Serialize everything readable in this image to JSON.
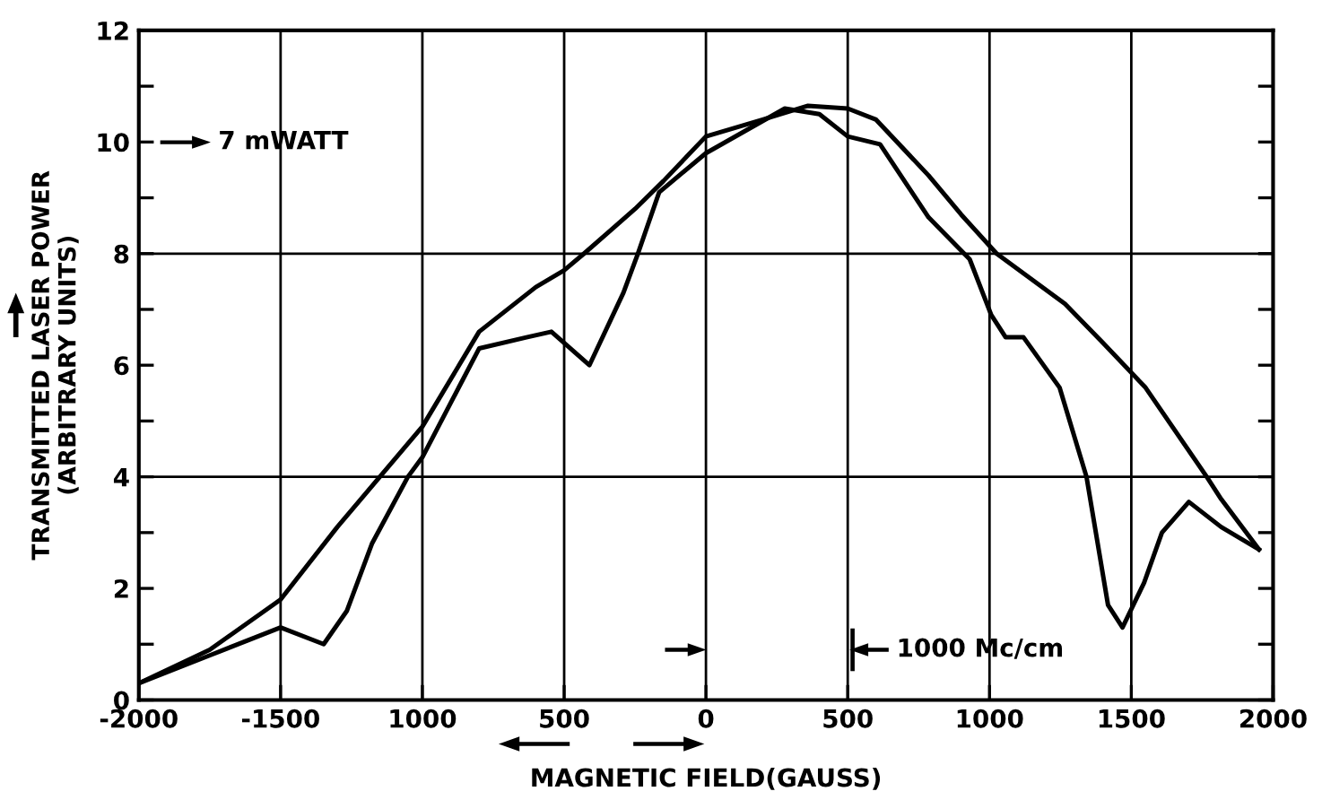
{
  "chart_data": {
    "type": "line",
    "xlabel": "MAGNETIC FIELD(GAUSS)",
    "ylabel": "TRANSMITTED LASER POWER\n(ARBITRARY UNITS)",
    "xlim": [
      -2000,
      2000
    ],
    "ylim": [
      0,
      12
    ],
    "xticks": [
      {
        "value": -2000,
        "label": "-2000"
      },
      {
        "value": -1500,
        "label": "-1500"
      },
      {
        "value": -1000,
        "label": "1000"
      },
      {
        "value": -500,
        "label": "500"
      },
      0,
      500,
      1000,
      1500,
      2000
    ],
    "yticks": [
      0,
      {
        "value": 1,
        "label": null
      },
      2,
      {
        "value": 3,
        "label": null
      },
      4,
      {
        "value": 5,
        "label": null
      },
      6,
      {
        "value": 7,
        "label": null
      },
      8,
      {
        "value": 9,
        "label": null
      },
      10,
      {
        "value": 11,
        "label": null
      },
      12
    ],
    "grid": "x",
    "ref_lines": [
      {
        "axis": "y",
        "value": 4,
        "color": "#000000"
      },
      {
        "axis": "y",
        "value": 8,
        "color": "#000000"
      }
    ],
    "annotations": [
      "7 mWATT",
      "1000 Mc/cm"
    ],
    "line_style": "solid",
    "marker": "none",
    "series": [
      {
        "color": "#000000",
        "x": [
          -2000,
          -1750,
          -1500,
          -1300,
          -1150,
          -1000,
          -800,
          -600,
          -500,
          -430,
          -250,
          -150,
          0,
          200,
          360,
          500,
          600,
          785,
          900,
          1025,
          1266,
          1400,
          1550,
          1766,
          1817,
          1950
        ],
        "values": [
          0.3,
          0.9,
          1.8,
          3.1,
          4.0,
          4.9,
          6.6,
          7.4,
          7.7,
          8.0,
          8.8,
          9.3,
          10.1,
          10.4,
          10.65,
          10.6,
          10.4,
          9.4,
          8.7,
          8.0,
          7.1,
          6.4,
          5.6,
          4.0,
          3.6,
          2.7
        ]
      },
      {
        "color": "#000000",
        "x": [
          -2000,
          -1750,
          -1500,
          -1348,
          -1266,
          -1178,
          -1051,
          -1000,
          -800,
          -633,
          -545,
          -411,
          -291,
          -240,
          -165,
          0,
          278,
          400,
          500,
          614,
          785,
          930,
          1006,
          1057,
          1120,
          1247,
          1342,
          1418,
          1469,
          1545,
          1608,
          1703,
          1817,
          1950
        ],
        "values": [
          0.3,
          0.8,
          1.3,
          1.0,
          1.6,
          2.8,
          4.0,
          4.35,
          6.3,
          6.5,
          6.6,
          6.0,
          7.3,
          8.0,
          9.1,
          9.8,
          10.6,
          10.5,
          10.1,
          9.96,
          8.65,
          7.9,
          6.9,
          6.5,
          6.5,
          5.6,
          4.0,
          1.7,
          1.3,
          2.1,
          3.0,
          3.55,
          3.1,
          2.7
        ]
      }
    ]
  }
}
